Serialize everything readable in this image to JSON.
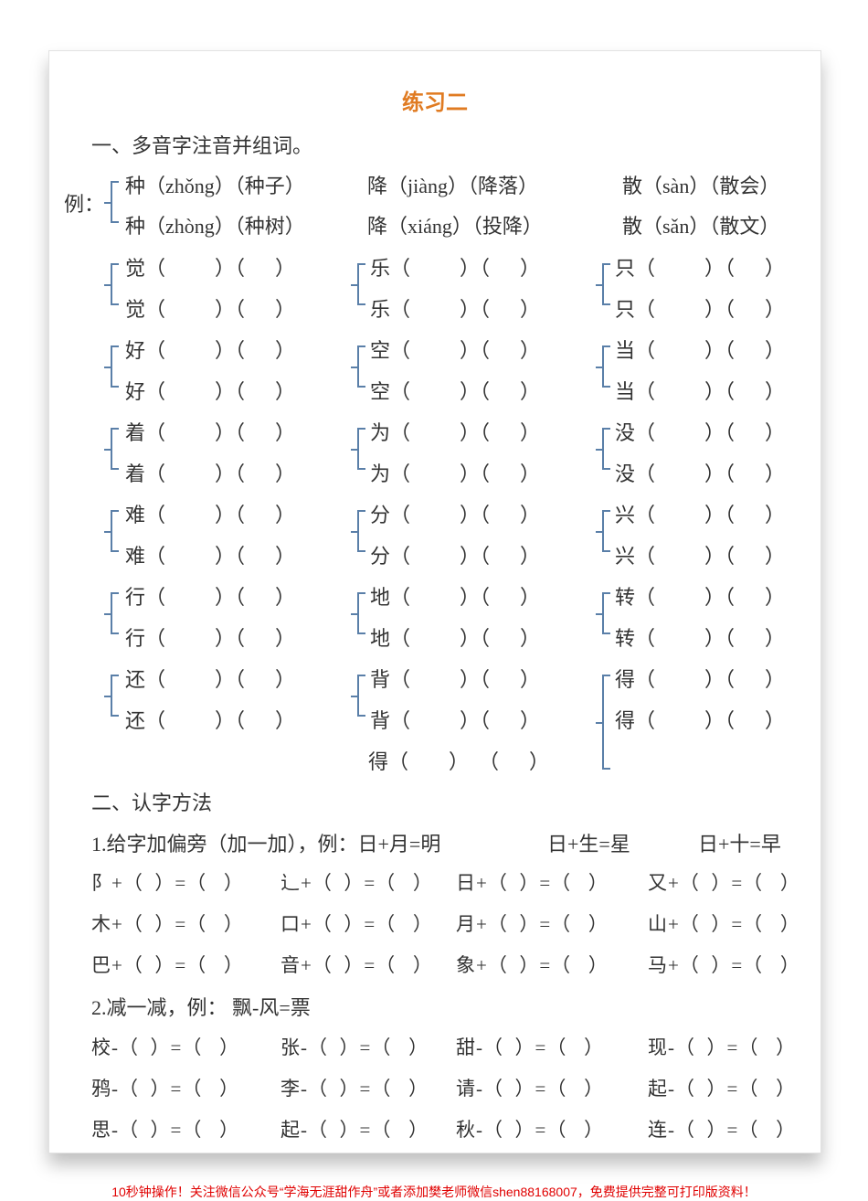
{
  "title": "练习二",
  "section1": {
    "heading": "一、多音字注音并组词。",
    "example_label": "例：",
    "examples": [
      [
        "种（zhǒng）（种子）",
        "种（zhòng）（种树）"
      ],
      [
        "降（jiàng）（降落）",
        "降（xiáng）（投降）"
      ],
      [
        "散（sàn）（散会）",
        "散（sǎn）（散文）"
      ]
    ],
    "groups": [
      [
        "觉",
        "乐",
        "只"
      ],
      [
        "好",
        "空",
        "当"
      ],
      [
        "着",
        "为",
        "没"
      ],
      [
        "难",
        "分",
        "兴"
      ],
      [
        "行",
        "地",
        "转"
      ],
      [
        "还",
        "背",
        "得"
      ]
    ],
    "extra_char": "得"
  },
  "section2": {
    "heading": "二、认字方法",
    "add_heading": "1.给字加偏旁（加一加），例：日+月=明",
    "add_examples": [
      "日+生=星",
      "日+十=早"
    ],
    "add_items": [
      [
        "阝",
        "辶",
        "日",
        "又"
      ],
      [
        "木",
        "口",
        "月",
        "山"
      ],
      [
        "巴",
        "音",
        "象",
        "马"
      ]
    ],
    "sub_heading": "2.减一减，例：  飘-风=票",
    "sub_items": [
      [
        "校",
        "张",
        "甜",
        "现"
      ],
      [
        "鸦",
        "李",
        "请",
        "起"
      ],
      [
        "思",
        "起",
        "秋",
        "连"
      ]
    ]
  },
  "footer": "10秒钟操作！关注微信公众号“学海无涯甜作舟”或者添加樊老师微信shen88168007，免费提供完整可打印版资料！"
}
